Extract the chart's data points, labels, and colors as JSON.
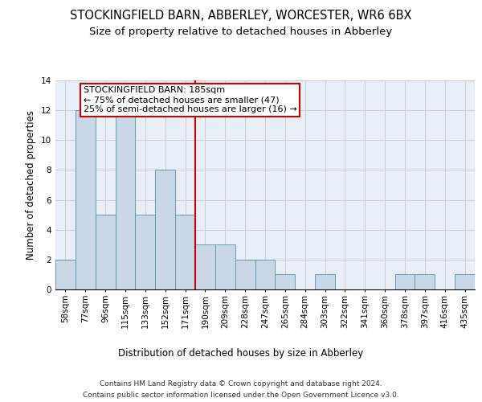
{
  "title": "STOCKINGFIELD BARN, ABBERLEY, WORCESTER, WR6 6BX",
  "subtitle": "Size of property relative to detached houses in Abberley",
  "xlabel": "Distribution of detached houses by size in Abberley",
  "ylabel": "Number of detached properties",
  "categories": [
    "58sqm",
    "77sqm",
    "96sqm",
    "115sqm",
    "133sqm",
    "152sqm",
    "171sqm",
    "190sqm",
    "209sqm",
    "228sqm",
    "247sqm",
    "265sqm",
    "284sqm",
    "303sqm",
    "322sqm",
    "341sqm",
    "360sqm",
    "378sqm",
    "397sqm",
    "416sqm",
    "435sqm"
  ],
  "values": [
    2,
    12,
    5,
    12,
    5,
    8,
    5,
    3,
    3,
    2,
    2,
    1,
    0,
    1,
    0,
    0,
    0,
    1,
    1,
    0,
    1
  ],
  "bar_color": "#c8d8e8",
  "bar_edgecolor": "#5b8fa8",
  "vline_x": 6.5,
  "vline_color": "#cc0000",
  "annotation_text": "STOCKINGFIELD BARN: 185sqm\n← 75% of detached houses are smaller (47)\n25% of semi-detached houses are larger (16) →",
  "annotation_box_edgecolor": "#cc0000",
  "annotation_box_facecolor": "#ffffff",
  "ylim": [
    0,
    14
  ],
  "yticks": [
    0,
    2,
    4,
    6,
    8,
    10,
    12,
    14
  ],
  "grid_color": "#cccccc",
  "bg_color": "#e8eef8",
  "footer_line1": "Contains HM Land Registry data © Crown copyright and database right 2024.",
  "footer_line2": "Contains public sector information licensed under the Open Government Licence v3.0.",
  "title_fontsize": 10.5,
  "subtitle_fontsize": 9.5,
  "xlabel_fontsize": 8.5,
  "ylabel_fontsize": 8.5,
  "tick_fontsize": 7.5,
  "annotation_fontsize": 8,
  "footer_fontsize": 6.5
}
